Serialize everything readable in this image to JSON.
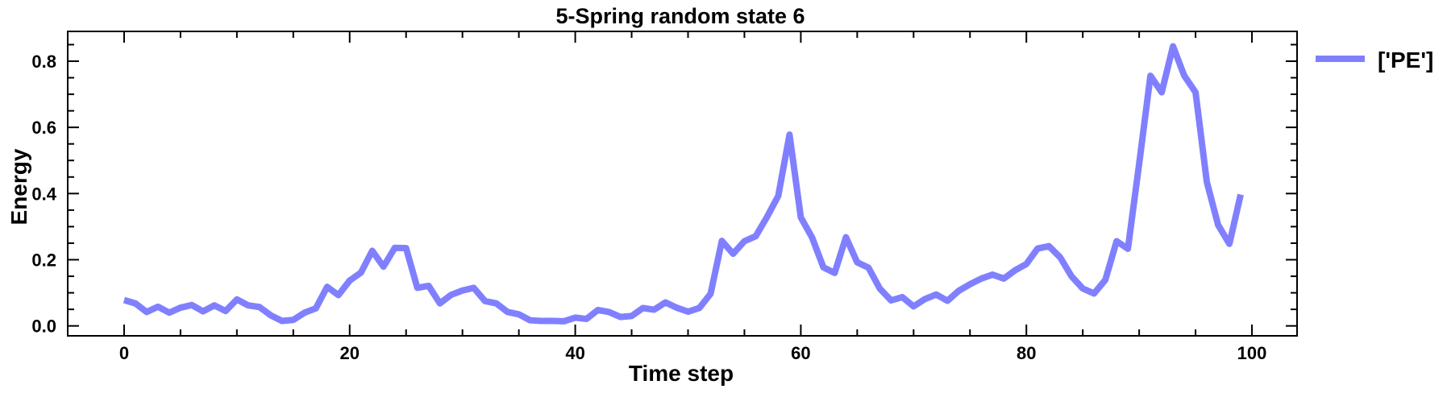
{
  "chart_data": {
    "type": "line",
    "title": "5-Spring random state 6",
    "xlabel": "Time step",
    "ylabel": "Energy",
    "xlim": [
      -5,
      104
    ],
    "ylim": [
      -0.03,
      0.89
    ],
    "xticks": [
      0,
      20,
      40,
      60,
      80,
      100
    ],
    "yticks": [
      0.0,
      0.2,
      0.4,
      0.6,
      0.8
    ],
    "xtick_labels": [
      "0",
      "20",
      "40",
      "60",
      "80",
      "100"
    ],
    "ytick_labels": [
      "0.0",
      "0.2",
      "0.4",
      "0.6",
      "0.8"
    ],
    "grid": false,
    "legend_position": "outside-top-right",
    "series": [
      {
        "name": "['PE']",
        "color": "#8080ff",
        "x": [
          0,
          1,
          2,
          3,
          4,
          5,
          6,
          7,
          8,
          9,
          10,
          11,
          12,
          13,
          14,
          15,
          16,
          17,
          18,
          19,
          20,
          21,
          22,
          23,
          24,
          25,
          26,
          27,
          28,
          29,
          30,
          31,
          32,
          33,
          34,
          35,
          36,
          37,
          38,
          39,
          40,
          41,
          42,
          43,
          44,
          45,
          46,
          47,
          48,
          49,
          50,
          51,
          52,
          53,
          54,
          55,
          56,
          57,
          58,
          59,
          60,
          61,
          62,
          63,
          64,
          65,
          66,
          67,
          68,
          69,
          70,
          71,
          72,
          73,
          74,
          75,
          76,
          77,
          78,
          79,
          80,
          81,
          82,
          83,
          84,
          85,
          86,
          87,
          88,
          89,
          90,
          91,
          92,
          93,
          94,
          95,
          96,
          97,
          98,
          99
        ],
        "values": [
          0.078,
          0.068,
          0.042,
          0.058,
          0.04,
          0.055,
          0.063,
          0.044,
          0.062,
          0.045,
          0.08,
          0.062,
          0.057,
          0.032,
          0.015,
          0.018,
          0.04,
          0.053,
          0.118,
          0.093,
          0.137,
          0.161,
          0.227,
          0.179,
          0.236,
          0.235,
          0.115,
          0.121,
          0.068,
          0.094,
          0.107,
          0.115,
          0.075,
          0.068,
          0.042,
          0.035,
          0.017,
          0.015,
          0.015,
          0.014,
          0.025,
          0.021,
          0.048,
          0.042,
          0.027,
          0.03,
          0.054,
          0.049,
          0.071,
          0.055,
          0.043,
          0.054,
          0.097,
          0.257,
          0.218,
          0.256,
          0.271,
          0.329,
          0.393,
          0.578,
          0.328,
          0.267,
          0.177,
          0.16,
          0.268,
          0.192,
          0.176,
          0.113,
          0.077,
          0.087,
          0.059,
          0.081,
          0.095,
          0.076,
          0.106,
          0.126,
          0.143,
          0.155,
          0.143,
          0.168,
          0.187,
          0.234,
          0.241,
          0.207,
          0.15,
          0.113,
          0.098,
          0.139,
          0.256,
          0.233,
          0.49,
          0.756,
          0.706,
          0.845,
          0.756,
          0.706,
          0.435,
          0.305,
          0.248,
          0.397
        ]
      }
    ]
  }
}
